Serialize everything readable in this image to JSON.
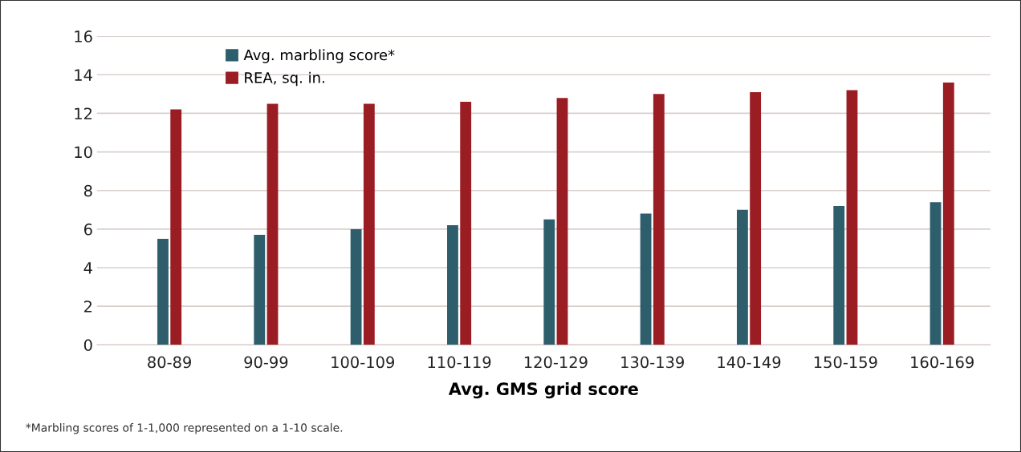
{
  "chart_data": {
    "type": "bar",
    "xlabel": "Avg. GMS grid score",
    "categories": [
      "80-89",
      "90-99",
      "100-109",
      "110-119",
      "120-129",
      "130-139",
      "140-149",
      "150-159",
      "160-169"
    ],
    "series": [
      {
        "name": "Avg. marbling score*",
        "color": "#2e5e6c",
        "values": [
          5.5,
          5.7,
          6.0,
          6.2,
          6.5,
          6.8,
          7.0,
          7.2,
          7.4
        ]
      },
      {
        "name": "REA, sq. in.",
        "color": "#9b1d24",
        "values": [
          12.2,
          12.5,
          12.5,
          12.6,
          12.8,
          13.0,
          13.1,
          13.2,
          13.6
        ]
      }
    ],
    "ylim": [
      0,
      16
    ],
    "yticks": [
      0,
      2,
      4,
      6,
      8,
      10,
      12,
      14,
      16
    ],
    "grid": "y",
    "legend": "top left",
    "annotations": [
      "*Marbling scores of 1-1,000 represented on a 1-10 scale."
    ]
  }
}
